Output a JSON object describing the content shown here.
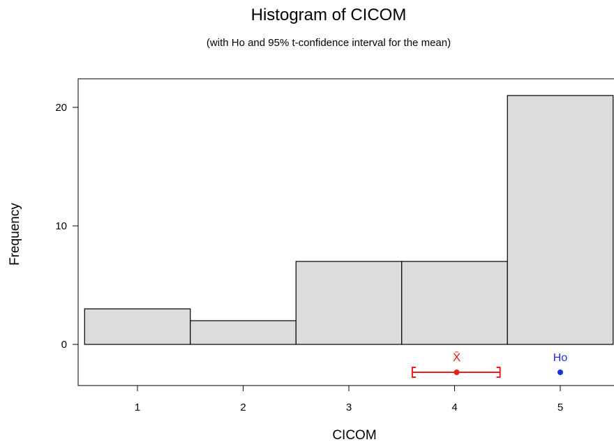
{
  "chart_data": {
    "type": "bar",
    "title": "Histogram of CICOM",
    "subtitle": "(with Ho and 95% t-confidence interval for the mean)",
    "xlabel": "CICOM",
    "ylabel": "Frequency",
    "bins": [
      {
        "center": 1,
        "frequency": 3
      },
      {
        "center": 2,
        "frequency": 2
      },
      {
        "center": 3,
        "frequency": 7
      },
      {
        "center": 4,
        "frequency": 7
      },
      {
        "center": 5,
        "frequency": 21
      }
    ],
    "x_ticks": [
      1,
      2,
      3,
      4,
      5
    ],
    "y_ticks": [
      0,
      10,
      20
    ],
    "xlim": [
      0.5,
      5.5
    ],
    "ylim": [
      -3.2,
      22.5
    ],
    "confidence_interval": {
      "label": "X̄",
      "mean": 4.02,
      "lower": 3.6,
      "upper": 4.43,
      "color": "#e8201c"
    },
    "hypothesized_mean": {
      "label": "Ho",
      "value": 5,
      "color": "#1c2fe0"
    },
    "bar_fill": "#dcdcdc",
    "bar_stroke": "#000000"
  }
}
